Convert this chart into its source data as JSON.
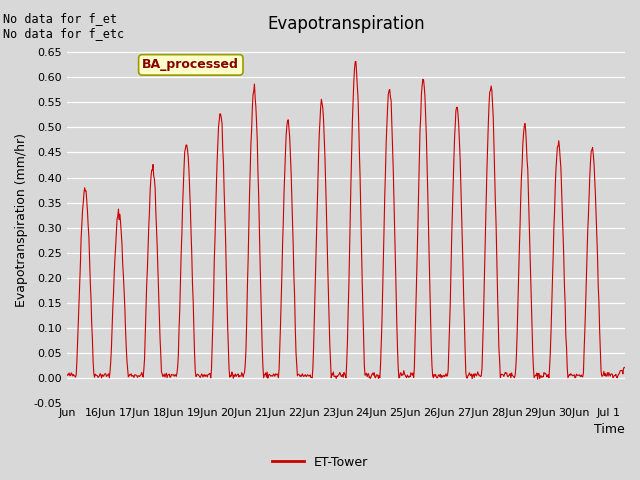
{
  "title": "Evapotranspiration",
  "ylabel": "Evapotranspiration (mm/hr)",
  "xlabel": "Time",
  "annotation_text": "No data for f_et\nNo data for f_etc",
  "legend_label": "ET-Tower",
  "line_color": "#cc0000",
  "legend_box_color": "#ffffcc",
  "legend_box_edge": "#999900",
  "legend_text_color": "#880000",
  "inset_label": "BA_processed",
  "ylim": [
    -0.05,
    0.68
  ],
  "yticks": [
    -0.05,
    0.0,
    0.05,
    0.1,
    0.15,
    0.2,
    0.25,
    0.3,
    0.35,
    0.4,
    0.45,
    0.5,
    0.55,
    0.6,
    0.65
  ],
  "bg_color": "#d8d8d8",
  "plot_bg_color": "#d8d8d8",
  "daily_peaks": [
    0.38,
    0.33,
    0.42,
    0.47,
    0.53,
    0.58,
    0.51,
    0.55,
    0.63,
    0.58,
    0.6,
    0.54,
    0.58,
    0.5,
    0.47,
    0.46
  ],
  "figsize": [
    6.4,
    4.8
  ],
  "dpi": 100
}
